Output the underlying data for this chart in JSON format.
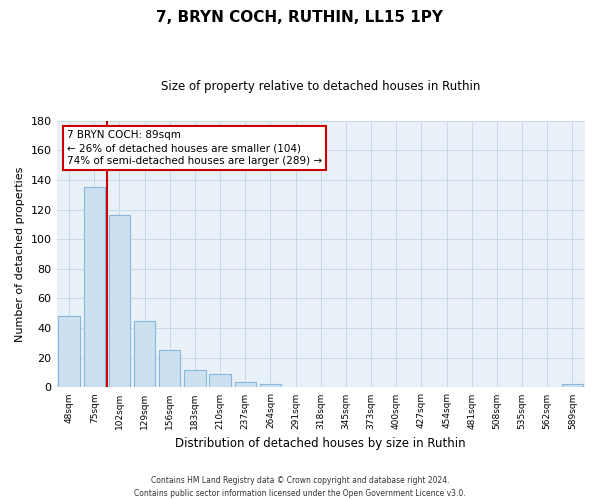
{
  "title": "7, BRYN COCH, RUTHIN, LL15 1PY",
  "subtitle": "Size of property relative to detached houses in Ruthin",
  "xlabel": "Distribution of detached houses by size in Ruthin",
  "ylabel": "Number of detached properties",
  "bar_labels": [
    "48sqm",
    "75sqm",
    "102sqm",
    "129sqm",
    "156sqm",
    "183sqm",
    "210sqm",
    "237sqm",
    "264sqm",
    "291sqm",
    "318sqm",
    "345sqm",
    "373sqm",
    "400sqm",
    "427sqm",
    "454sqm",
    "481sqm",
    "508sqm",
    "535sqm",
    "562sqm",
    "589sqm"
  ],
  "bar_values": [
    48,
    135,
    116,
    45,
    25,
    12,
    9,
    4,
    2,
    0,
    0,
    0,
    0,
    0,
    0,
    0,
    0,
    0,
    0,
    0,
    2
  ],
  "bar_color": "#cce0f0",
  "bar_edge_color": "#8ab8d8",
  "vline_color": "#cc0000",
  "vline_x_idx": 1.5,
  "ylim": [
    0,
    180
  ],
  "yticks": [
    0,
    20,
    40,
    60,
    80,
    100,
    120,
    140,
    160,
    180
  ],
  "ann_line1": "7 BRYN COCH: 89sqm",
  "ann_line2": "← 26% of detached houses are smaller (104)",
  "ann_line3": "74% of semi-detached houses are larger (289) →",
  "footer_line1": "Contains HM Land Registry data © Crown copyright and database right 2024.",
  "footer_line2": "Contains public sector information licensed under the Open Government Licence v3.0.",
  "background_color": "#ffffff",
  "grid_color": "#c8d8e8",
  "plot_bg_color": "#e8f0f8"
}
